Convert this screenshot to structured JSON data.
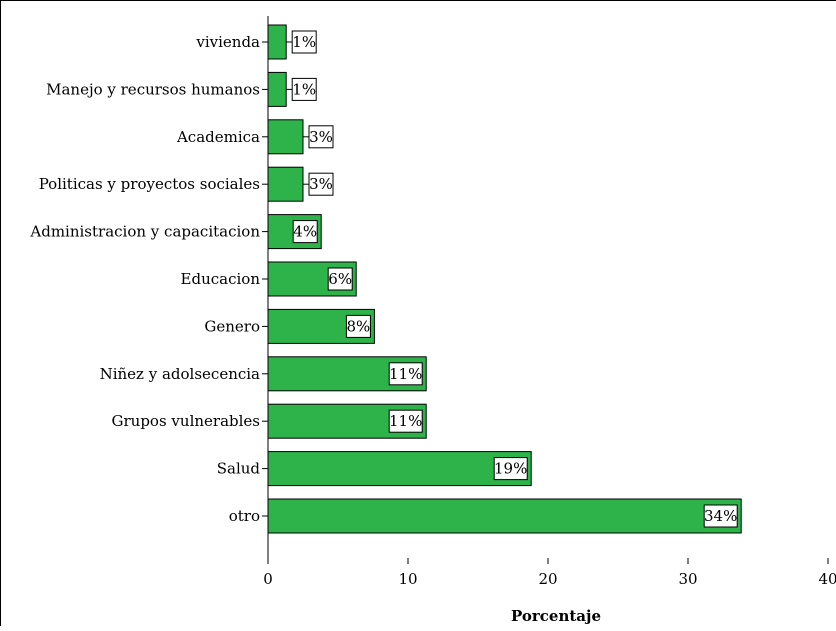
{
  "chart_data": {
    "type": "bar",
    "orientation": "horizontal",
    "categories": [
      "vivienda",
      "Manejo y recursos humanos",
      "Academica",
      "Politicas y proyectos sociales",
      "Administracion y capacitacion",
      "Educacion",
      "Genero",
      "Niñez y adolsecencia",
      "Grupos vulnerables",
      "Salud",
      "otro"
    ],
    "values": [
      1.3,
      1.3,
      2.5,
      2.5,
      3.8,
      6.3,
      7.6,
      11.3,
      11.3,
      18.8,
      33.8
    ],
    "data_labels": [
      "1%",
      "1%",
      "3%",
      "3%",
      "4%",
      "6%",
      "8%",
      "11%",
      "11%",
      "19%",
      "34%"
    ],
    "xlabel": "Porcentaje",
    "ylabel": "",
    "xlim": [
      0,
      40
    ],
    "xticks": [
      0,
      10,
      20,
      30,
      40
    ],
    "bar_color": "#2db34a",
    "grid": false
  }
}
